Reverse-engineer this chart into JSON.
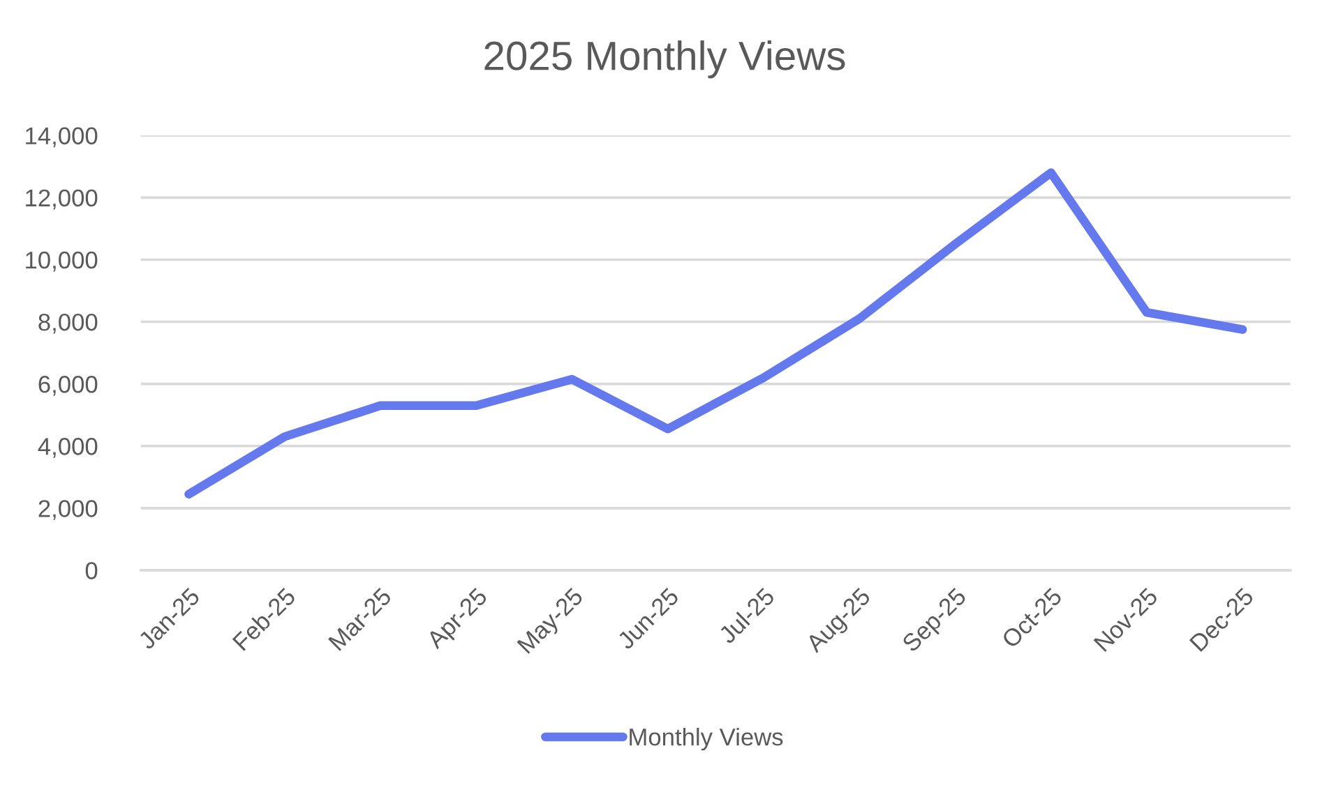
{
  "chart_data": {
    "type": "line",
    "title": "2025 Monthly Views",
    "categories": [
      "Jan-25",
      "Feb-25",
      "Mar-25",
      "Apr-25",
      "May-25",
      "Jun-25",
      "Jul-25",
      "Aug-25",
      "Sep-25",
      "Oct-25",
      "Nov-25",
      "Dec-25"
    ],
    "series": [
      {
        "name": "Monthly Views",
        "color": "#6479ee",
        "values": [
          2450,
          4300,
          5300,
          5300,
          6150,
          4550,
          6200,
          8100,
          10500,
          12800,
          8300,
          7750
        ]
      }
    ],
    "ylim": [
      0,
      14000
    ],
    "yticks": [
      {
        "value": 0,
        "label": "0"
      },
      {
        "value": 2000,
        "label": "2,000"
      },
      {
        "value": 4000,
        "label": "4,000"
      },
      {
        "value": 6000,
        "label": "6,000"
      },
      {
        "value": 8000,
        "label": "8,000"
      },
      {
        "value": 10000,
        "label": "10,000"
      },
      {
        "value": 12000,
        "label": "12,000"
      },
      {
        "value": 14000,
        "label": "14,000"
      }
    ],
    "grid": "y",
    "legend": "bottom",
    "marker": "none",
    "line_style": "solid"
  }
}
